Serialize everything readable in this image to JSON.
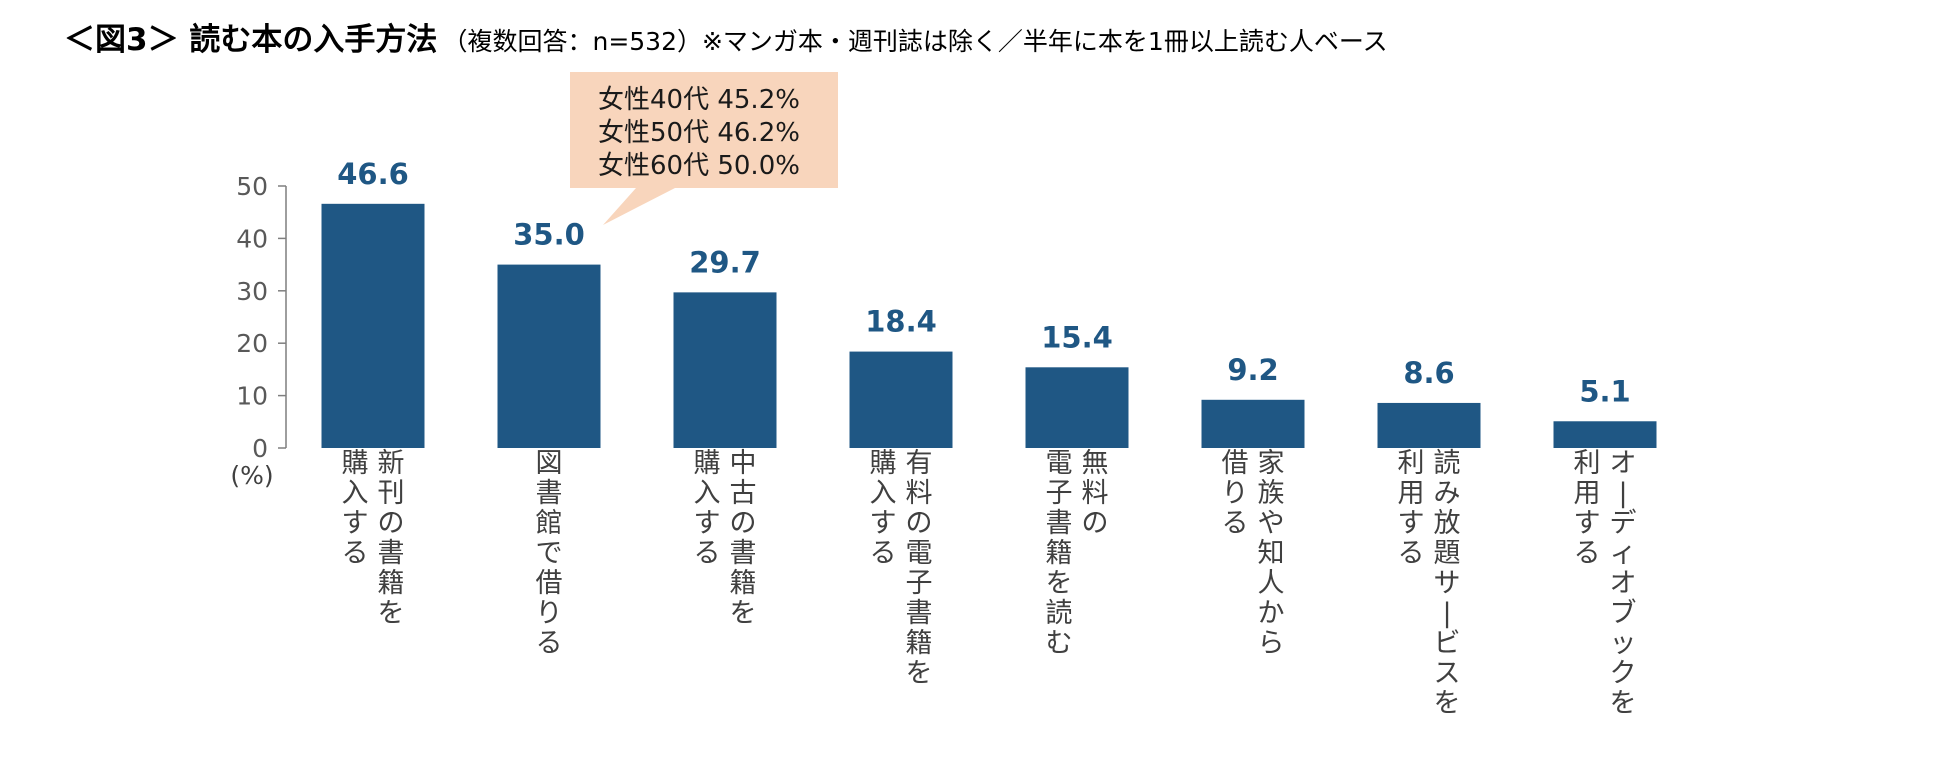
{
  "title": {
    "main": "＜図3＞ 読む本の入手方法",
    "note": "（複数回答：n=532）※マンガ本・週刊誌は除く／半年に本を1冊以上読む人ベース"
  },
  "colors": {
    "bar": "#1f5784",
    "value_label": "#1f5784",
    "callout_bg": "#f8d5bc",
    "axis": "#7f7f7f"
  },
  "callout": {
    "lines": [
      "女性40代 45.2%",
      "女性50代 46.2%",
      "女性60代 50.0%"
    ],
    "points_to": "図書館で借りる"
  },
  "chart_data": {
    "type": "bar",
    "title": "読む本の入手方法",
    "ylabel": "(%)",
    "xlabel": "",
    "ylim": [
      0,
      50
    ],
    "yticks": [
      0,
      10,
      20,
      30,
      40,
      50
    ],
    "grid": false,
    "categories": [
      [
        "新刊の書籍を",
        "購入する"
      ],
      [
        "図書館で借りる"
      ],
      [
        "中古の書籍を",
        "購入する"
      ],
      [
        "有料の電子書籍を",
        "購入する"
      ],
      [
        "無料の",
        "電子書籍を読む"
      ],
      [
        "家族や知人から",
        "借りる"
      ],
      [
        "読み放題サービスを",
        "利用する"
      ],
      [
        "オーディオブックを",
        "利用する"
      ]
    ],
    "values": [
      46.6,
      35.0,
      29.7,
      18.4,
      15.4,
      9.2,
      8.6,
      5.1
    ],
    "value_labels": [
      "46.6",
      "35.0",
      "29.7",
      "18.4",
      "15.4",
      "9.2",
      "8.6",
      "5.1"
    ]
  }
}
